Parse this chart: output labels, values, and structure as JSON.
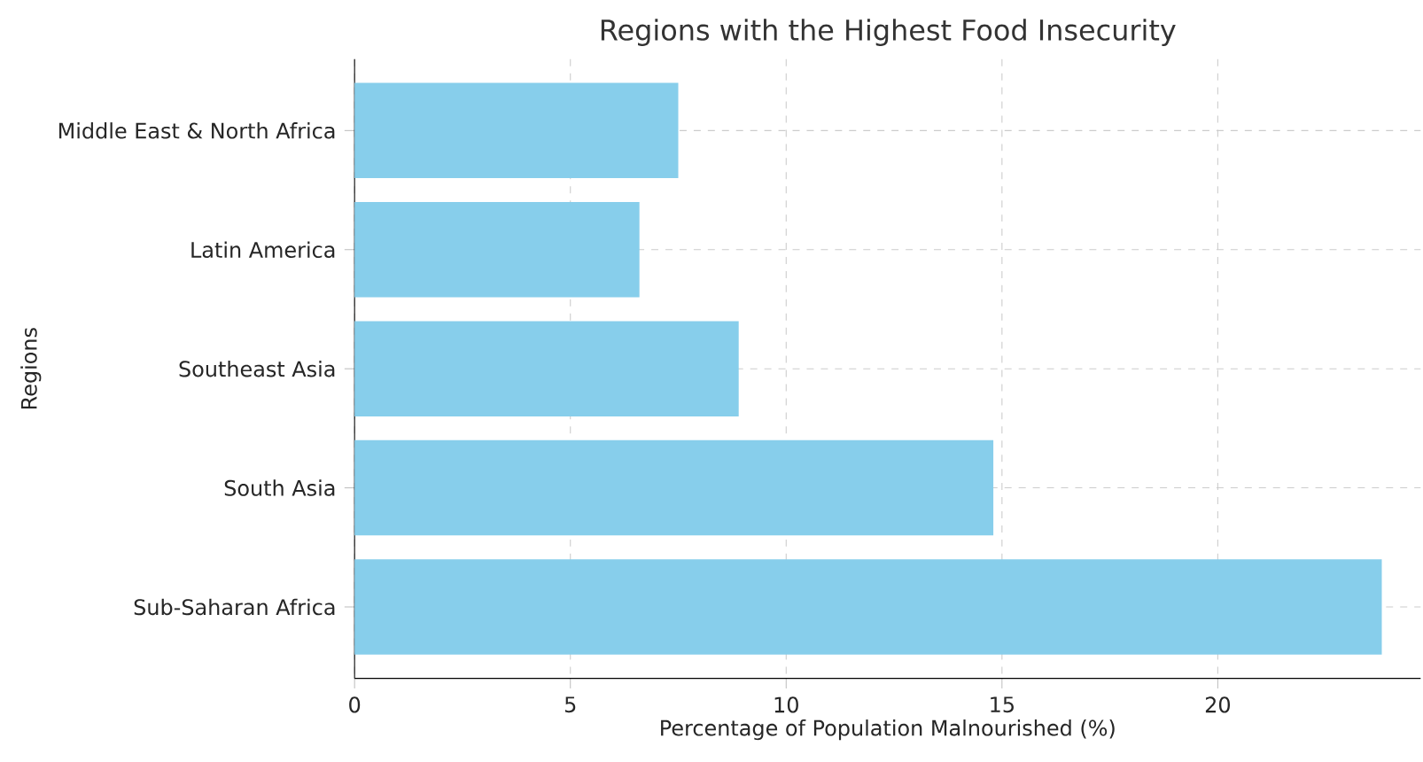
{
  "chart_data": {
    "type": "bar",
    "orientation": "horizontal",
    "title": "Regions with the Highest Food Insecurity",
    "xlabel": "Percentage of Population Malnourished (%)",
    "ylabel": "Regions",
    "categories": [
      "Middle East & North Africa",
      "Latin America",
      "Southeast Asia",
      "South Asia",
      "Sub-Saharan Africa"
    ],
    "values": [
      7.5,
      6.6,
      8.9,
      14.8,
      23.8
    ],
    "color": "#87ceeb",
    "xlim": [
      0,
      24.7
    ],
    "xticks": [
      0,
      5,
      10,
      15,
      20
    ],
    "grid": true
  }
}
